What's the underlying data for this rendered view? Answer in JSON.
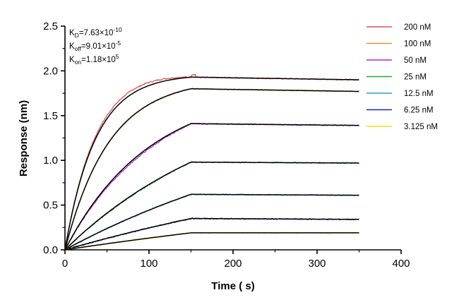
{
  "chart_data": {
    "type": "line",
    "xlabel": "Time ( s)",
    "ylabel": "Response (nm)",
    "xlim": [
      0,
      400
    ],
    "ylim": [
      0,
      2.5
    ],
    "x_ticks": [
      0,
      100,
      200,
      300,
      400
    ],
    "y_ticks": [
      0.0,
      0.5,
      1.0,
      1.5,
      2.0,
      2.5
    ],
    "x_tick_labels": [
      "0",
      "100",
      "200",
      "300",
      "400"
    ],
    "y_tick_labels": [
      "0.0",
      "0.5",
      "1.0",
      "1.5",
      "2.0",
      "2.5"
    ],
    "association_end_s": 150,
    "dissociation_end_s": 350,
    "annotations": {
      "kd": {
        "symbol": "K",
        "sub": "D",
        "mantissa": "=7.63×10",
        "exp": "-10"
      },
      "koff": {
        "symbol": "K",
        "sub": "off",
        "mantissa": "=9.01×10",
        "exp": "-5"
      },
      "kon": {
        "symbol": "K",
        "sub": "on",
        "mantissa": "=1.18×10",
        "exp": "5"
      }
    },
    "fit_color": "#000000",
    "series": [
      {
        "name": "200 nM",
        "color": "#e05252",
        "y_at_150": 1.93,
        "y_end": 1.9,
        "k_obs": 0.0275,
        "obs_offset": 0.04
      },
      {
        "name": "100 nM",
        "color": "#f0912c",
        "y_at_150": 1.8,
        "y_end": 1.77,
        "k_obs": 0.019,
        "obs_offset": 0.0
      },
      {
        "name": "50 nM",
        "color": "#b22bc8",
        "y_at_150": 1.41,
        "y_end": 1.39,
        "k_obs": 0.01,
        "obs_offset": -0.02
      },
      {
        "name": "25 nM",
        "color": "#1fae2b",
        "y_at_150": 0.98,
        "y_end": 0.97,
        "k_obs": 0.005,
        "obs_offset": -0.005
      },
      {
        "name": "12.5 nM",
        "color": "#2aa6b8",
        "y_at_150": 0.62,
        "y_end": 0.61,
        "k_obs": 0.003,
        "obs_offset": 0.0
      },
      {
        "name": "6.25 nM",
        "color": "#1f27b0",
        "y_at_150": 0.35,
        "y_end": 0.34,
        "k_obs": 0.002,
        "obs_offset": 0.0
      },
      {
        "name": "3.125 nM",
        "color": "#e8e21a",
        "y_at_150": 0.19,
        "y_end": 0.19,
        "k_obs": 0.0015,
        "obs_offset": 0.0
      }
    ]
  }
}
